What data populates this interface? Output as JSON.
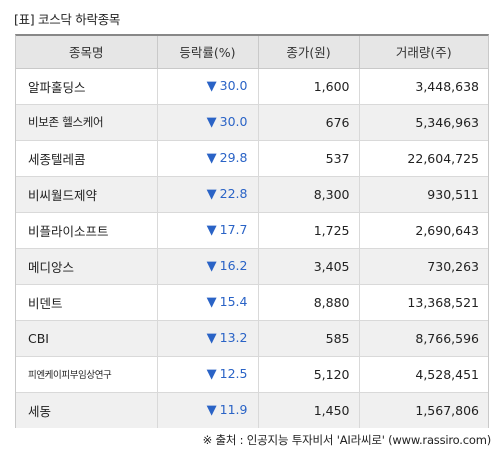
{
  "title": "[표] 코스닥 하락종목",
  "header": {
    "name": "종목명",
    "rate": "등락률(%)",
    "price": "종가(원)",
    "volume": "거래량(주)"
  },
  "down_marker": "▼",
  "rows": [
    {
      "name": "알파홀딩스",
      "rate": "30.0",
      "price": "1,600",
      "volume": "3,448,638"
    },
    {
      "name": "비보존 헬스케어",
      "rate": "30.0",
      "price": "676",
      "volume": "5,346,963"
    },
    {
      "name": "세종텔레콤",
      "rate": "29.8",
      "price": "537",
      "volume": "22,604,725"
    },
    {
      "name": "비씨월드제약",
      "rate": "22.8",
      "price": "8,300",
      "volume": "930,511"
    },
    {
      "name": "비플라이소프트",
      "rate": "17.7",
      "price": "1,725",
      "volume": "2,690,643"
    },
    {
      "name": "메디앙스",
      "rate": "16.2",
      "price": "3,405",
      "volume": "730,263"
    },
    {
      "name": "비덴트",
      "rate": "15.4",
      "price": "8,880",
      "volume": "13,368,521"
    },
    {
      "name": "CBI",
      "rate": "13.2",
      "price": "585",
      "volume": "8,766,596"
    },
    {
      "name": "피엔케이피부임상연구",
      "rate": "12.5",
      "price": "5,120",
      "volume": "4,528,451"
    },
    {
      "name": "세동",
      "rate": "11.9",
      "price": "1,450",
      "volume": "1,567,806"
    }
  ],
  "source": "※ 출처 : 인공지능 투자비서 'AI라씨로' (www.rassiro.com)",
  "colors": {
    "down": "#2a63c6",
    "header_bg": "#e6e6e6",
    "alt_row_bg": "#f0f0f0"
  }
}
